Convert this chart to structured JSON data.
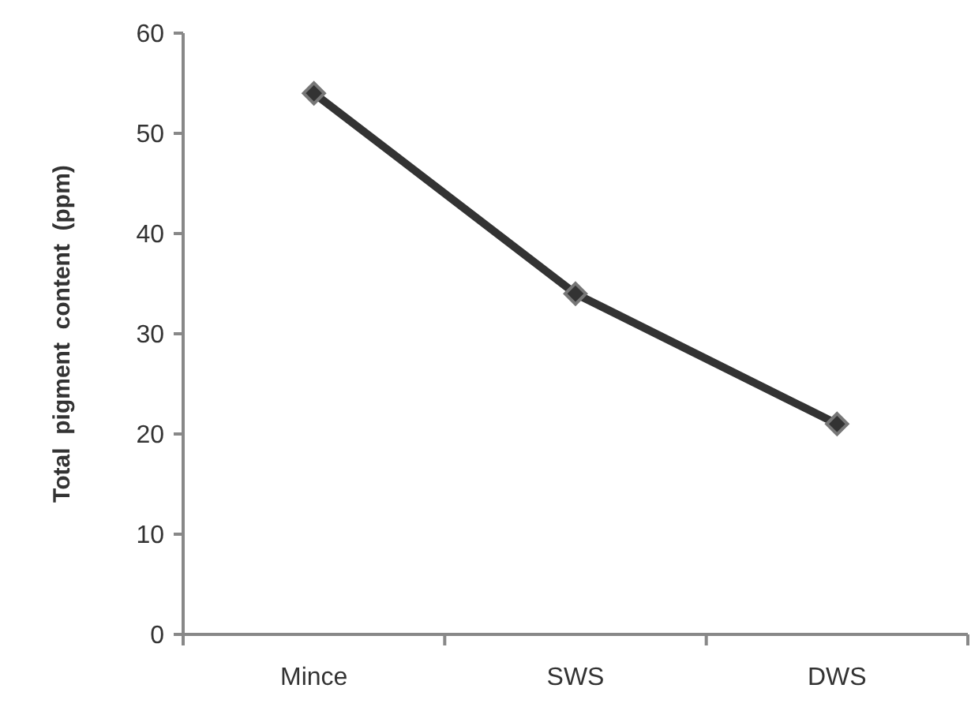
{
  "chart_data": {
    "type": "line",
    "ylabel": "Total  pigment  content  (ppm)",
    "categories": [
      "Mince",
      "SWS",
      "DWS"
    ],
    "series": [
      {
        "color": "#333333",
        "values": [
          54,
          34,
          21
        ]
      }
    ],
    "ylim": [
      0,
      60
    ],
    "yticks": [
      0,
      10,
      20,
      30,
      40,
      50,
      60
    ],
    "marker": "diamond",
    "line_style": "solid"
  }
}
